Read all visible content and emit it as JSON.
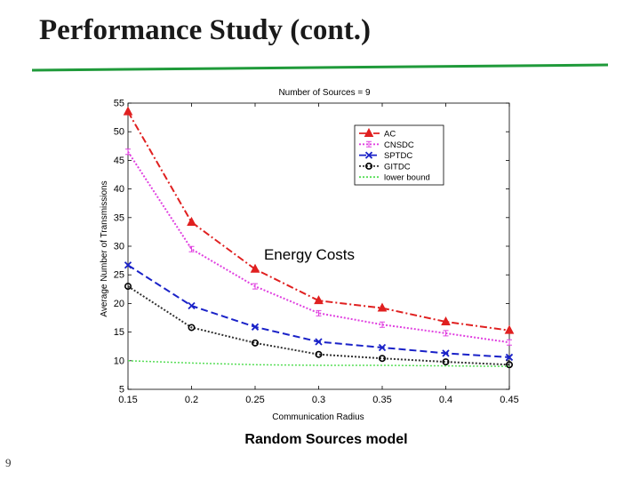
{
  "slide": {
    "title": "Performance Study (cont.)",
    "caption": "Random Sources model",
    "page_number": "9",
    "rule_color": "#1f9a3a"
  },
  "chart_data": {
    "type": "line",
    "title": "Number of Sources = 9",
    "xlabel": "Communication Radius",
    "ylabel": "Average Number of Transmissions",
    "annotation": "Energy Costs",
    "x": [
      0.15,
      0.2,
      0.25,
      0.3,
      0.35,
      0.4,
      0.45
    ],
    "x_tick_labels": [
      "0.15",
      "0.2",
      "0.25",
      "0.3",
      "0.35",
      "0.4",
      "0.45"
    ],
    "xlim": [
      0.15,
      0.45
    ],
    "ylim": [
      5,
      55
    ],
    "y_ticks": [
      5,
      10,
      15,
      20,
      25,
      30,
      35,
      40,
      45,
      50,
      55
    ],
    "legend_position": "top-right",
    "series": [
      {
        "name": "AC",
        "color": "#e02020",
        "marker": "triangle",
        "dash": "8,3,2,3",
        "values": [
          53.5,
          34.2,
          26.0,
          20.5,
          19.2,
          16.8,
          15.3
        ]
      },
      {
        "name": "CNSDC",
        "color": "#e040e0",
        "marker": "bar",
        "dash": "2,2",
        "values": [
          46.5,
          29.5,
          23.0,
          18.3,
          16.3,
          14.8,
          13.2
        ]
      },
      {
        "name": "SPTDC",
        "color": "#1a22c8",
        "marker": "x",
        "dash": "8,4",
        "values": [
          26.7,
          19.6,
          15.9,
          13.3,
          12.3,
          11.3,
          10.6
        ]
      },
      {
        "name": "GITDC",
        "color": "#333333",
        "marker": "circle",
        "dash": "2,2",
        "values": [
          23.0,
          15.8,
          13.1,
          11.1,
          10.4,
          9.8,
          9.3
        ]
      },
      {
        "name": "lower bound",
        "color": "#55dd55",
        "marker": "none",
        "dash": "2,2",
        "values": [
          10.0,
          9.6,
          9.3,
          9.2,
          9.2,
          9.1,
          9.0
        ]
      }
    ]
  }
}
